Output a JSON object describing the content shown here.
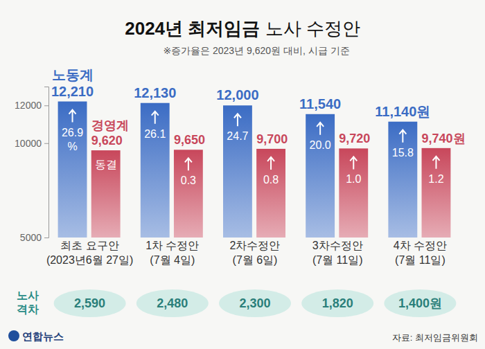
{
  "chart_data": {
    "type": "bar",
    "title": "2024년 최저임금 노사 수정안",
    "subtitle": "※증가율은 2023년 9,620원 대비, 시급 기준",
    "categories": [
      "최초 요구안\n(2023년6월 27일)",
      "1차 수정안\n(7월 4일)",
      "2차수정안\n(7월 6일)",
      "3차수정안\n(7월 11일)",
      "4차 수정안\n(7월 11일)"
    ],
    "series": [
      {
        "name": "노동계",
        "color": "#3b6cc4",
        "values": [
          12210,
          12130,
          12000,
          11540,
          11140
        ],
        "value_labels": [
          "12,210",
          "12,130",
          "12,000",
          "11,540",
          "11,140원"
        ],
        "increase": [
          26.9,
          26.1,
          24.7,
          20.0,
          15.8
        ],
        "increase_labels": [
          "26.9\n%",
          "26.1",
          "24.7",
          "20.0",
          "15.8"
        ]
      },
      {
        "name": "경영계",
        "color": "#c8475b",
        "values": [
          9620,
          9650,
          9700,
          9720,
          9740
        ],
        "value_labels": [
          "9,620",
          "9,650",
          "9,700",
          "9,720",
          "9,740원"
        ],
        "increase": [
          0,
          0.3,
          0.8,
          1.0,
          1.2
        ],
        "increase_labels": [
          "동결",
          "0.3",
          "0.8",
          "1.0",
          "1.2"
        ]
      }
    ],
    "ylim": [
      5000,
      13000
    ],
    "yticks": [
      5000,
      10000,
      12000
    ],
    "grid": false,
    "data_labels": true,
    "gap": {
      "name": "노사\n격차",
      "values": [
        2590,
        2480,
        2300,
        1820,
        1400
      ],
      "value_labels": [
        "2,590",
        "2,480",
        "2,300",
        "1,820",
        "1,400원"
      ]
    },
    "source": "자료: 최저임금위원회",
    "logo": "연합뉴스"
  }
}
